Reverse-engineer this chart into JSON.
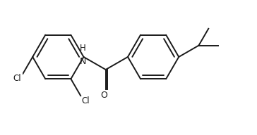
{
  "bg_color": "#ffffff",
  "line_color": "#1a1a1a",
  "line_width": 1.4,
  "font_size": 8.5,
  "figsize": [
    3.64,
    1.92
  ],
  "dpi": 100,
  "xlim": [
    -2.2,
    3.8
  ],
  "ylim": [
    -2.0,
    1.8
  ]
}
